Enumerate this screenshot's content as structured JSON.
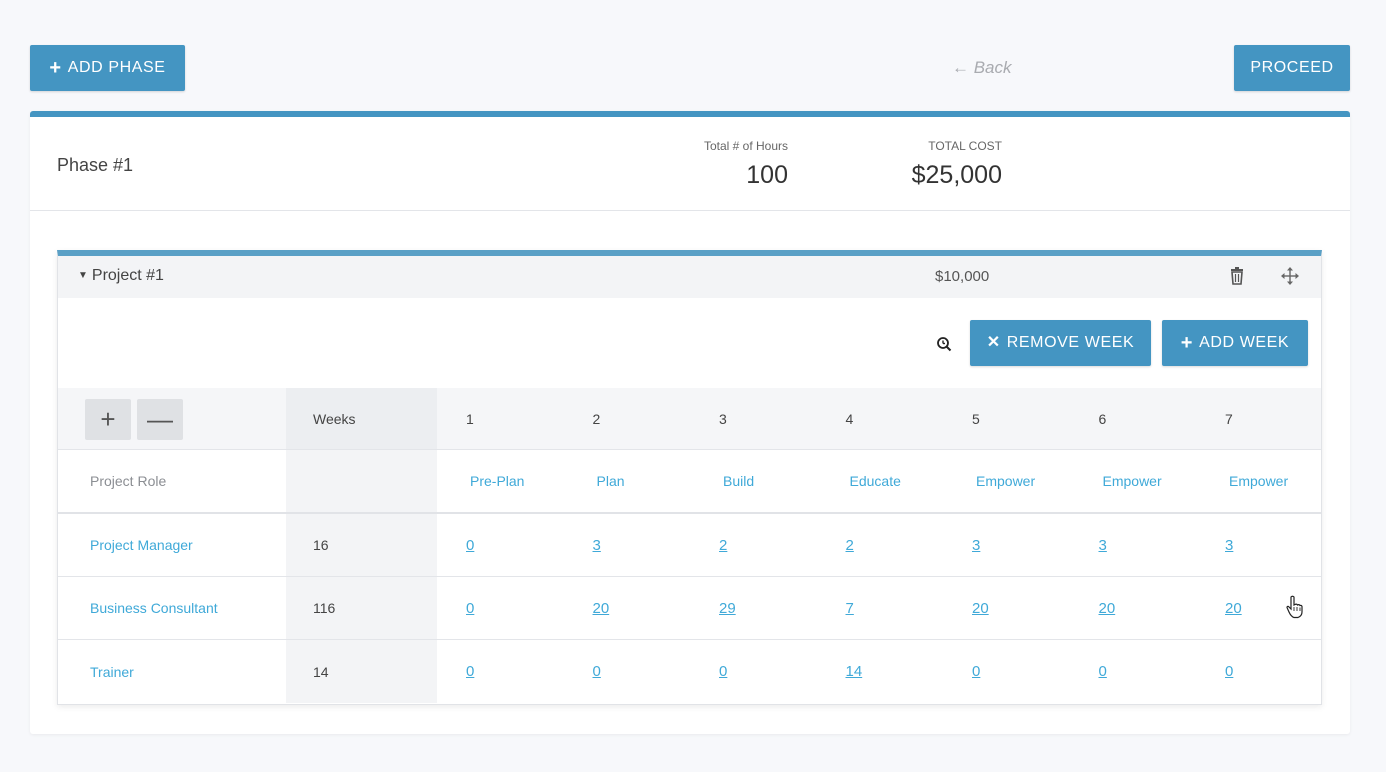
{
  "toolbar": {
    "add_phase_icon": "+",
    "add_phase_label": "ADD PHASE",
    "back_label": "← Back",
    "proceed_label": "PROCEED"
  },
  "phase": {
    "title": "Phase #1",
    "hours_label": "Total # of Hours",
    "hours_value": "100",
    "cost_label": "TOTAL COST",
    "cost_value": "$25,000"
  },
  "project": {
    "title": "Project #1",
    "cost": "$10,000",
    "remove_week_icon": "✕",
    "remove_week_label": "REMOVE WEEK",
    "add_week_icon": "+",
    "add_week_label": "ADD WEEK"
  },
  "table": {
    "plus_label": "+",
    "minus_label": "—",
    "weeks_header": "Weeks",
    "week_numbers": [
      "1",
      "2",
      "3",
      "4",
      "5",
      "6",
      "7"
    ],
    "role_header": "Project Role",
    "phase_labels": [
      "Pre-Plan",
      "Plan",
      "Build",
      "Educate",
      "Empower",
      "Empower",
      "Empower"
    ],
    "rows": [
      {
        "role": "Project Manager",
        "total": "16",
        "hours": [
          "0",
          "3",
          "2",
          "2",
          "3",
          "3",
          "3"
        ]
      },
      {
        "role": "Business Consultant",
        "total": "116",
        "hours": [
          "0",
          "20",
          "29",
          "7",
          "20",
          "20",
          "20"
        ]
      },
      {
        "role": "Trainer",
        "total": "14",
        "hours": [
          "0",
          "0",
          "0",
          "14",
          "0",
          "0",
          "0"
        ]
      }
    ]
  },
  "colors": {
    "primary": "#4495c2",
    "link": "#3fa9d8",
    "muted": "#a9abb0"
  },
  "icons": [
    "plus-icon",
    "back-arrow-icon",
    "caret-down-icon",
    "trash-icon",
    "move-icon",
    "zoom-icon",
    "close-icon",
    "pointer-cursor-icon"
  ]
}
